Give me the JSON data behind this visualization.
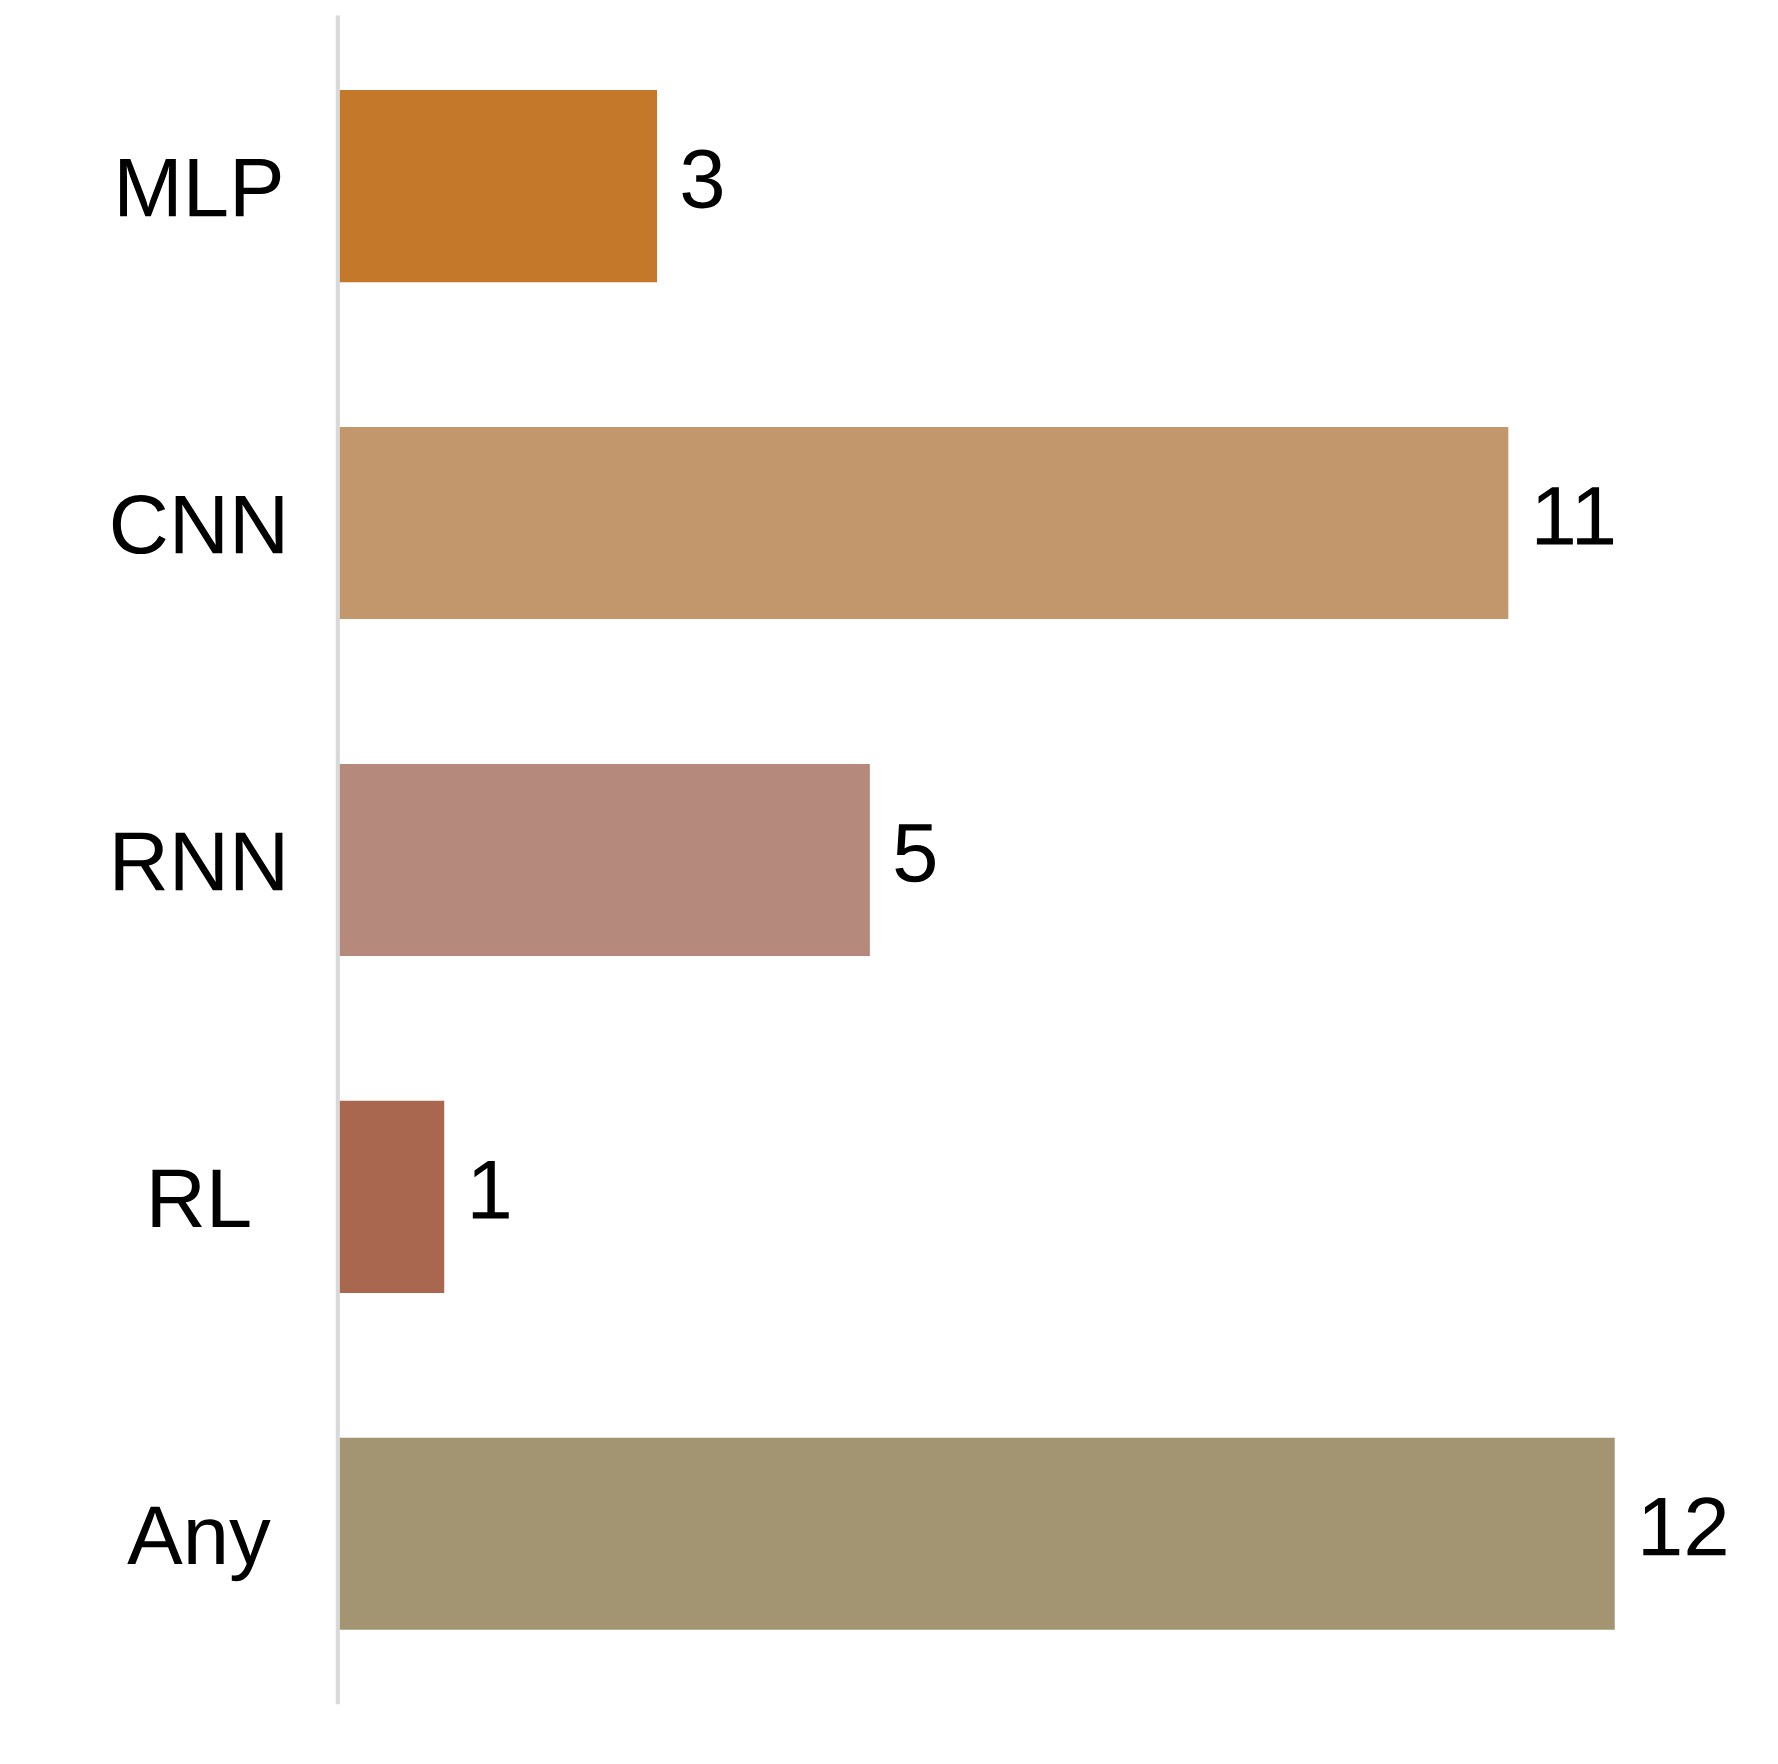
{
  "chart_data": {
    "type": "bar",
    "orientation": "horizontal",
    "categories": [
      "MLP",
      "CNN",
      "RNN",
      "RL",
      "Any"
    ],
    "values": [
      3,
      11,
      5,
      1,
      12
    ],
    "colors": [
      "#c47829",
      "#c3976c",
      "#b5897c",
      "#a96750",
      "#a39571"
    ],
    "data_labels": true,
    "tick_labels": "y",
    "grid": false,
    "legend": false
  }
}
